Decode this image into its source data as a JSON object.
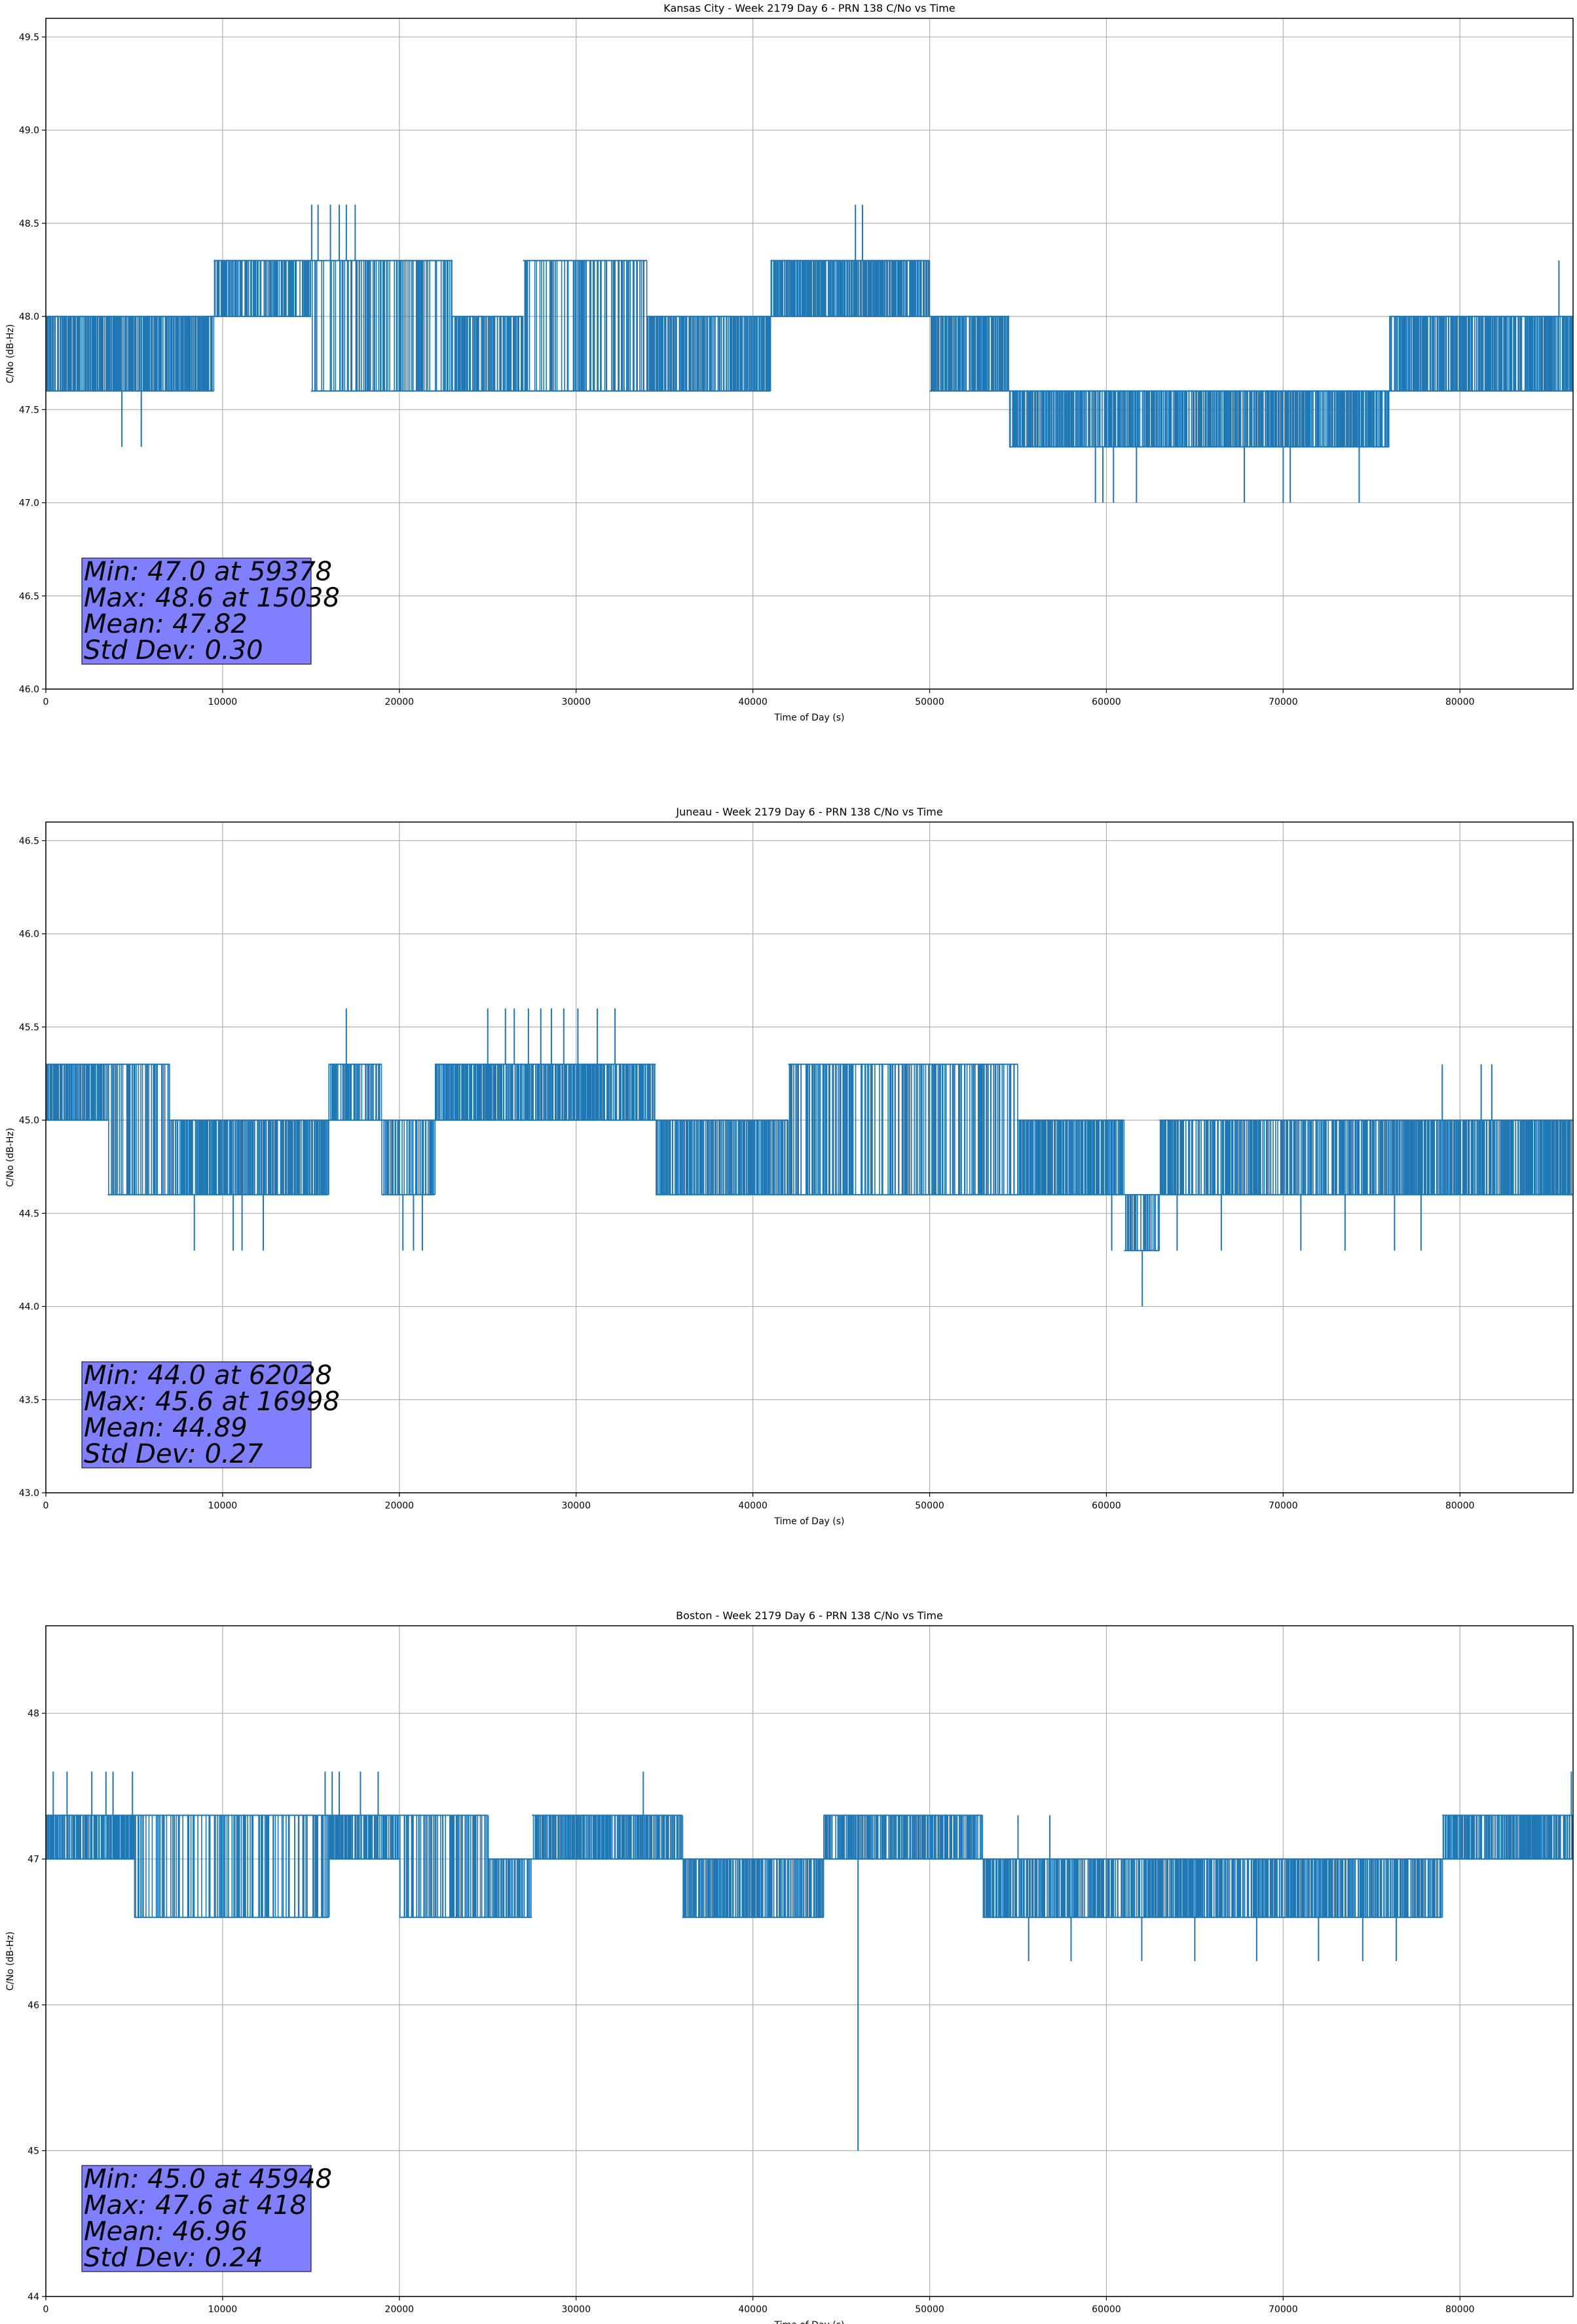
{
  "figure": {
    "xlabel": "Time of Day (s)",
    "ylabel": "C/No (dB-Hz)",
    "series_color": "#1f77b4",
    "stats_box_color": "#8080ff"
  },
  "chart_data": [
    {
      "type": "line",
      "title": "Kansas City - Week 2179 Day 6 - PRN 138 C/No vs Time",
      "xlabel": "Time of Day (s)",
      "ylabel": "C/No (dB-Hz)",
      "xlim": [
        0,
        86400
      ],
      "ylim": [
        46.0,
        49.6
      ],
      "xticks": [
        0,
        10000,
        20000,
        30000,
        40000,
        50000,
        60000,
        70000,
        80000
      ],
      "yticks": [
        46.0,
        46.5,
        47.0,
        47.5,
        48.0,
        48.5,
        49.0,
        49.5
      ],
      "ytick_decimals": 1,
      "grid": true,
      "quantization_step": 0.3,
      "stats": [
        "Min: 47.0 at 59378",
        "Max: 48.6 at 15038",
        "Mean: 47.82",
        "Std Dev: 0.30"
      ],
      "segments": [
        {
          "start": 0,
          "end": 9500,
          "low": 47.6,
          "high": 48.0,
          "density": 0.95
        },
        {
          "start": 9500,
          "end": 15000,
          "low": 48.0,
          "high": 48.3,
          "density": 0.8
        },
        {
          "start": 15000,
          "end": 23000,
          "low": 47.6,
          "high": 48.3,
          "density": 0.55
        },
        {
          "start": 23000,
          "end": 27000,
          "low": 47.6,
          "high": 48.0,
          "density": 0.85
        },
        {
          "start": 27000,
          "end": 34000,
          "low": 47.6,
          "high": 48.3,
          "density": 0.55
        },
        {
          "start": 34000,
          "end": 41000,
          "low": 47.6,
          "high": 48.0,
          "density": 0.9
        },
        {
          "start": 41000,
          "end": 50000,
          "low": 48.0,
          "high": 48.3,
          "density": 0.95
        },
        {
          "start": 50000,
          "end": 54500,
          "low": 47.6,
          "high": 48.0,
          "density": 0.85
        },
        {
          "start": 54500,
          "end": 76000,
          "low": 47.3,
          "high": 47.6,
          "density": 0.9
        },
        {
          "start": 76000,
          "end": 86400,
          "low": 47.6,
          "high": 48.0,
          "density": 0.85
        }
      ],
      "spikes": [
        {
          "x": 4300,
          "low": 47.3
        },
        {
          "x": 5400,
          "low": 47.3
        },
        {
          "x": 15038,
          "high": 48.6
        },
        {
          "x": 15400,
          "high": 48.6
        },
        {
          "x": 16100,
          "high": 48.6
        },
        {
          "x": 16600,
          "high": 48.6
        },
        {
          "x": 17000,
          "high": 48.6
        },
        {
          "x": 17500,
          "high": 48.6
        },
        {
          "x": 45800,
          "high": 48.6
        },
        {
          "x": 46200,
          "high": 48.6
        },
        {
          "x": 59378,
          "low": 47.0
        },
        {
          "x": 59800,
          "low": 47.0
        },
        {
          "x": 60400,
          "low": 47.0
        },
        {
          "x": 61700,
          "low": 47.0
        },
        {
          "x": 67800,
          "low": 47.0
        },
        {
          "x": 70000,
          "low": 47.0
        },
        {
          "x": 70400,
          "low": 47.0
        },
        {
          "x": 74300,
          "low": 47.0
        },
        {
          "x": 85600,
          "high": 48.3
        }
      ]
    },
    {
      "type": "line",
      "title": "Juneau - Week 2179 Day 6 - PRN 138 C/No vs Time",
      "xlabel": "Time of Day (s)",
      "ylabel": "C/No (dB-Hz)",
      "xlim": [
        0,
        86400
      ],
      "ylim": [
        43.0,
        46.6
      ],
      "xticks": [
        0,
        10000,
        20000,
        30000,
        40000,
        50000,
        60000,
        70000,
        80000
      ],
      "yticks": [
        43.0,
        43.5,
        44.0,
        44.5,
        45.0,
        45.5,
        46.0,
        46.5
      ],
      "ytick_decimals": 1,
      "grid": true,
      "quantization_step": 0.3,
      "stats": [
        "Min: 44.0 at 62028",
        "Max: 45.6 at 16998",
        "Mean: 44.89",
        "Std Dev: 0.27"
      ],
      "segments": [
        {
          "start": 0,
          "end": 3500,
          "low": 45.0,
          "high": 45.3,
          "density": 0.9
        },
        {
          "start": 3500,
          "end": 7000,
          "low": 44.6,
          "high": 45.3,
          "density": 0.5
        },
        {
          "start": 7000,
          "end": 16000,
          "low": 44.6,
          "high": 45.0,
          "density": 0.85
        },
        {
          "start": 16000,
          "end": 19000,
          "low": 45.0,
          "high": 45.3,
          "density": 0.75
        },
        {
          "start": 19000,
          "end": 22000,
          "low": 44.6,
          "high": 45.0,
          "density": 0.7
        },
        {
          "start": 22000,
          "end": 34500,
          "low": 45.0,
          "high": 45.3,
          "density": 0.9
        },
        {
          "start": 34500,
          "end": 42000,
          "low": 44.6,
          "high": 45.0,
          "density": 0.9
        },
        {
          "start": 42000,
          "end": 55000,
          "low": 44.6,
          "high": 45.3,
          "density": 0.55
        },
        {
          "start": 55000,
          "end": 61000,
          "low": 44.6,
          "high": 45.0,
          "density": 0.9
        },
        {
          "start": 61000,
          "end": 63000,
          "low": 44.3,
          "high": 44.6,
          "density": 0.7
        },
        {
          "start": 63000,
          "end": 76000,
          "low": 44.6,
          "high": 45.0,
          "density": 0.75
        },
        {
          "start": 76000,
          "end": 86400,
          "low": 44.6,
          "high": 45.0,
          "density": 0.9
        }
      ],
      "spikes": [
        {
          "x": 8400,
          "low": 44.3
        },
        {
          "x": 10600,
          "low": 44.3
        },
        {
          "x": 11100,
          "low": 44.3
        },
        {
          "x": 12300,
          "low": 44.3
        },
        {
          "x": 16998,
          "high": 45.6
        },
        {
          "x": 20200,
          "low": 44.3
        },
        {
          "x": 20800,
          "low": 44.3
        },
        {
          "x": 21300,
          "low": 44.3
        },
        {
          "x": 25000,
          "high": 45.6
        },
        {
          "x": 26000,
          "high": 45.6
        },
        {
          "x": 26500,
          "high": 45.6
        },
        {
          "x": 27300,
          "high": 45.6
        },
        {
          "x": 28000,
          "high": 45.6
        },
        {
          "x": 28600,
          "high": 45.6
        },
        {
          "x": 29300,
          "high": 45.6
        },
        {
          "x": 30100,
          "high": 45.6
        },
        {
          "x": 31200,
          "high": 45.6
        },
        {
          "x": 32200,
          "high": 45.6
        },
        {
          "x": 60300,
          "low": 44.3
        },
        {
          "x": 62028,
          "low": 44.0
        },
        {
          "x": 64000,
          "low": 44.3
        },
        {
          "x": 66500,
          "low": 44.3
        },
        {
          "x": 71000,
          "low": 44.3
        },
        {
          "x": 73500,
          "low": 44.3
        },
        {
          "x": 76300,
          "low": 44.3
        },
        {
          "x": 77800,
          "low": 44.3
        },
        {
          "x": 79000,
          "high": 45.3
        },
        {
          "x": 81200,
          "high": 45.3
        },
        {
          "x": 81800,
          "high": 45.3
        }
      ]
    },
    {
      "type": "line",
      "title": "Boston - Week 2179 Day 6 - PRN 138 C/No vs Time",
      "xlabel": "Time of Day (s)",
      "ylabel": "C/No (dB-Hz)",
      "xlim": [
        0,
        86400
      ],
      "ylim": [
        44.0,
        48.6
      ],
      "xticks": [
        0,
        10000,
        20000,
        30000,
        40000,
        50000,
        60000,
        70000,
        80000
      ],
      "yticks": [
        44,
        45,
        46,
        47,
        48
      ],
      "ytick_decimals": 0,
      "grid": true,
      "quantization_step": 0.3,
      "stats": [
        "Min: 45.0 at 45948",
        "Max: 47.6 at 418",
        "Mean: 46.96",
        "Std Dev: 0.24"
      ],
      "segments": [
        {
          "start": 0,
          "end": 5000,
          "low": 47.0,
          "high": 47.3,
          "density": 0.9
        },
        {
          "start": 5000,
          "end": 16000,
          "low": 46.6,
          "high": 47.3,
          "density": 0.5
        },
        {
          "start": 16000,
          "end": 20000,
          "low": 47.0,
          "high": 47.3,
          "density": 0.85
        },
        {
          "start": 20000,
          "end": 25000,
          "low": 46.6,
          "high": 47.3,
          "density": 0.55
        },
        {
          "start": 25000,
          "end": 27500,
          "low": 46.6,
          "high": 47.0,
          "density": 0.8
        },
        {
          "start": 27500,
          "end": 36000,
          "low": 47.0,
          "high": 47.3,
          "density": 0.9
        },
        {
          "start": 36000,
          "end": 44000,
          "low": 46.6,
          "high": 47.0,
          "density": 0.85
        },
        {
          "start": 44000,
          "end": 53000,
          "low": 47.0,
          "high": 47.3,
          "density": 0.85
        },
        {
          "start": 53000,
          "end": 79000,
          "low": 46.6,
          "high": 47.0,
          "density": 0.85
        },
        {
          "start": 79000,
          "end": 86400,
          "low": 47.0,
          "high": 47.3,
          "density": 0.9
        }
      ],
      "spikes": [
        {
          "x": 418,
          "high": 47.6
        },
        {
          "x": 1200,
          "high": 47.6
        },
        {
          "x": 2600,
          "high": 47.6
        },
        {
          "x": 3400,
          "high": 47.6
        },
        {
          "x": 3800,
          "high": 47.6
        },
        {
          "x": 4900,
          "high": 47.6
        },
        {
          "x": 15800,
          "high": 47.6
        },
        {
          "x": 16200,
          "high": 47.6
        },
        {
          "x": 16600,
          "high": 47.6
        },
        {
          "x": 17800,
          "high": 47.6
        },
        {
          "x": 18800,
          "high": 47.6
        },
        {
          "x": 33800,
          "high": 47.6
        },
        {
          "x": 45948,
          "low": 45.0
        },
        {
          "x": 55000,
          "high": 47.3
        },
        {
          "x": 56800,
          "high": 47.3
        },
        {
          "x": 55600,
          "low": 46.3
        },
        {
          "x": 58000,
          "low": 46.3
        },
        {
          "x": 62000,
          "low": 46.3
        },
        {
          "x": 65000,
          "low": 46.3
        },
        {
          "x": 68500,
          "low": 46.3
        },
        {
          "x": 72000,
          "low": 46.3
        },
        {
          "x": 74500,
          "low": 46.3
        },
        {
          "x": 76400,
          "low": 46.3
        },
        {
          "x": 86300,
          "high": 47.6
        }
      ]
    }
  ]
}
